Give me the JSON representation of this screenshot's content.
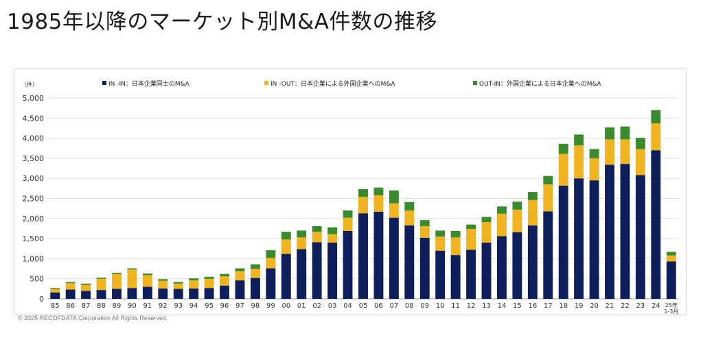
{
  "page": {
    "title": "1985年以降のマーケット別M&A件数の推移",
    "copyright": "© 2025 RECOFDATA Corporation All Rights Reserved."
  },
  "chart_data": {
    "type": "bar",
    "stacked": true,
    "ylabel": "（件）",
    "ylim": [
      0,
      5000
    ],
    "y_ticks": [
      "0",
      "500",
      "1,000",
      "1,500",
      "2,000",
      "2,500",
      "3,000",
      "3,500",
      "4,000",
      "4,500",
      "5,000"
    ],
    "grid": true,
    "legend_position": "top",
    "categories": [
      "85",
      "86",
      "87",
      "88",
      "89",
      "90",
      "91",
      "92",
      "93",
      "94",
      "95",
      "96",
      "97",
      "98",
      "99",
      "00",
      "01",
      "02",
      "03",
      "04",
      "05",
      "06",
      "07",
      "08",
      "09",
      "10",
      "11",
      "12",
      "13",
      "14",
      "15",
      "16",
      "17",
      "18",
      "19",
      "20",
      "21",
      "22",
      "23",
      "24",
      "25年 1-3月"
    ],
    "series": [
      {
        "name": "IN -IN：日本企業同士のM&A",
        "color": "#0f1f5c",
        "values": [
          160,
          230,
          200,
          220,
          250,
          270,
          300,
          260,
          250,
          260,
          270,
          330,
          460,
          520,
          760,
          1120,
          1240,
          1410,
          1400,
          1690,
          2130,
          2170,
          2020,
          1830,
          1520,
          1200,
          1090,
          1220,
          1400,
          1560,
          1660,
          1830,
          2180,
          2820,
          3000,
          2950,
          3340,
          3360,
          3080,
          3700,
          930
        ]
      },
      {
        "name": "IN -OUT：日本企業による外国企業へのM&A",
        "color": "#f0b322",
        "values": [
          90,
          160,
          150,
          280,
          370,
          460,
          290,
          190,
          130,
          200,
          230,
          230,
          230,
          230,
          260,
          360,
          290,
          260,
          210,
          330,
          410,
          410,
          360,
          370,
          290,
          350,
          440,
          520,
          510,
          560,
          560,
          630,
          670,
          790,
          820,
          550,
          630,
          610,
          650,
          670,
          150
        ]
      },
      {
        "name": "OUT-IN：外国企業による日本企業へのM&A",
        "color": "#3a8a2e",
        "values": [
          20,
          30,
          30,
          30,
          30,
          30,
          40,
          40,
          40,
          50,
          50,
          60,
          70,
          110,
          190,
          190,
          170,
          140,
          170,
          180,
          190,
          190,
          320,
          210,
          150,
          150,
          160,
          110,
          130,
          180,
          200,
          200,
          210,
          250,
          270,
          230,
          300,
          320,
          280,
          330,
          90
        ]
      }
    ]
  }
}
